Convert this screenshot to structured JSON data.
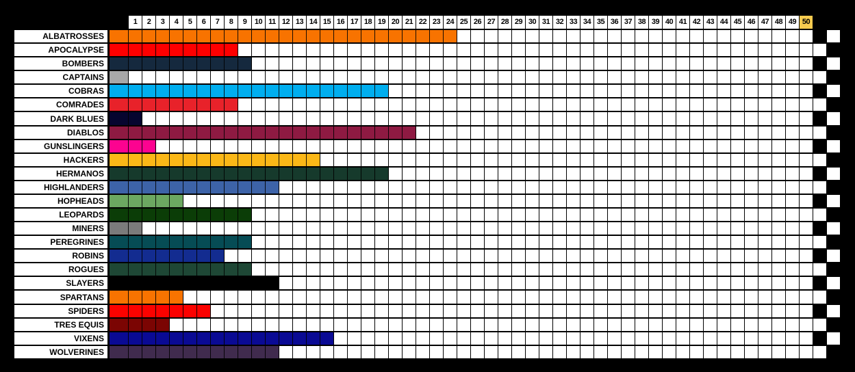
{
  "chart_data": {
    "type": "bar",
    "orientation": "horizontal",
    "title": "",
    "xlabel": "",
    "ylabel": "",
    "x_ticks": [
      1,
      2,
      3,
      4,
      5,
      6,
      7,
      8,
      9,
      10,
      11,
      12,
      13,
      14,
      15,
      16,
      17,
      18,
      19,
      20,
      21,
      22,
      23,
      24,
      25,
      26,
      27,
      28,
      29,
      30,
      31,
      32,
      33,
      34,
      35,
      36,
      37,
      38,
      39,
      40,
      41,
      42,
      43,
      44,
      45,
      46,
      47,
      48,
      49,
      50
    ],
    "xlim": [
      0,
      50
    ],
    "finish_line": 50,
    "grid": true,
    "legend_position": "none",
    "teams": [
      {
        "name": "ALBATROSSES",
        "value": 24,
        "color": "#F87300"
      },
      {
        "name": "APOCALYPSE",
        "value": 8,
        "color": "#FE0000"
      },
      {
        "name": "BOMBERS",
        "value": 9,
        "color": "#15293E"
      },
      {
        "name": "CAPTAINS",
        "value": 0,
        "color": "#A8A8A8"
      },
      {
        "name": "COBRAS",
        "value": 19,
        "color": "#00AEEF"
      },
      {
        "name": "COMRADES",
        "value": 8,
        "color": "#E8222A"
      },
      {
        "name": "DARK BLUES",
        "value": 1,
        "color": "#06052F"
      },
      {
        "name": "DIABLOS",
        "value": 21,
        "color": "#8E1A42"
      },
      {
        "name": "GUNSLINGERS",
        "value": 2,
        "color": "#FC0390"
      },
      {
        "name": "HACKERS",
        "value": 14,
        "color": "#FBB817"
      },
      {
        "name": "HERMANOS",
        "value": 19,
        "color": "#163A2C"
      },
      {
        "name": "HIGHLANDERS",
        "value": 11,
        "color": "#3D63A8"
      },
      {
        "name": "HOPHEADS",
        "value": 4,
        "color": "#6CA861"
      },
      {
        "name": "LEOPARDS",
        "value": 9,
        "color": "#0B3D07"
      },
      {
        "name": "MINERS",
        "value": 1,
        "color": "#7B7B7B"
      },
      {
        "name": "PEREGRINES",
        "value": 9,
        "color": "#064C55"
      },
      {
        "name": "ROBINS",
        "value": 7,
        "color": "#132C90"
      },
      {
        "name": "ROGUES",
        "value": 9,
        "color": "#1E4735"
      },
      {
        "name": "SLAYERS",
        "value": 11,
        "color": "#000000"
      },
      {
        "name": "SPARTANS",
        "value": 4,
        "color": "#F87300"
      },
      {
        "name": "SPIDERS",
        "value": 6,
        "color": "#FB0200"
      },
      {
        "name": "TRES EQUIS",
        "value": 3,
        "color": "#7B0503"
      },
      {
        "name": "VIXENS",
        "value": 15,
        "color": "#0A0A94"
      },
      {
        "name": "WOLVERINES",
        "value": 11,
        "color": "#402B4E"
      }
    ],
    "colors": {
      "page_background": "#000000",
      "empty_cell": "#FFFFFF",
      "header_cell_bg": "#FFFFFF",
      "finish_header_bg": "#F7CB4F",
      "header_text": "#000000",
      "label_text": "#000000",
      "checker_black": "#000000",
      "checker_white": "#FFFFFF"
    }
  }
}
